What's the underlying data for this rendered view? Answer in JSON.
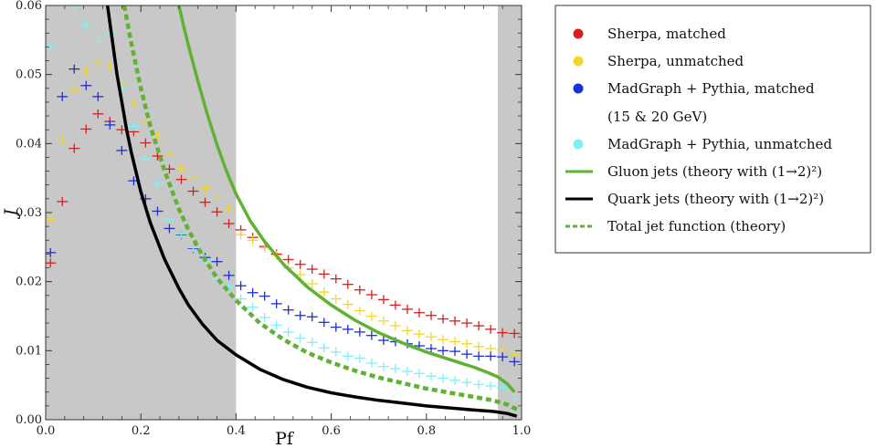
{
  "chart_data": {
    "type": "scatter",
    "title": "",
    "xlabel": "Pf",
    "ylabel": "J",
    "xlim": [
      0.0,
      1.0
    ],
    "ylim": [
      0.0,
      0.06
    ],
    "x_ticks": [
      "0.0",
      "0.2",
      "0.4",
      "0.6",
      "0.8",
      "1.0"
    ],
    "y_ticks": [
      "0.00",
      "0.01",
      "0.02",
      "0.03",
      "0.04",
      "0.05",
      "0.06"
    ],
    "shaded_regions": [
      [
        0.0,
        0.4
      ],
      [
        0.95,
        1.0
      ]
    ],
    "legend_position": "right-outside",
    "legend_extra_line": "(15 & 20 GeV)",
    "series": [
      {
        "name": "Sherpa, matched",
        "kind": "points",
        "color": "#d42020",
        "x": [
          0.01,
          0.035,
          0.06,
          0.085,
          0.11,
          0.135,
          0.16,
          0.185,
          0.21,
          0.235,
          0.26,
          0.285,
          0.31,
          0.335,
          0.36,
          0.385,
          0.41,
          0.435,
          0.46,
          0.485,
          0.51,
          0.535,
          0.56,
          0.585,
          0.61,
          0.635,
          0.66,
          0.685,
          0.71,
          0.735,
          0.76,
          0.785,
          0.81,
          0.835,
          0.86,
          0.885,
          0.91,
          0.935,
          0.96,
          0.985
        ],
        "y": [
          0.0227,
          0.0316,
          0.0393,
          0.0421,
          0.0443,
          0.0432,
          0.042,
          0.0417,
          0.0401,
          0.0382,
          0.0363,
          0.0348,
          0.0331,
          0.0315,
          0.0301,
          0.0284,
          0.0275,
          0.0264,
          0.0251,
          0.024,
          0.0232,
          0.0225,
          0.0218,
          0.0211,
          0.0204,
          0.0196,
          0.0188,
          0.0181,
          0.0174,
          0.0166,
          0.016,
          0.0155,
          0.0151,
          0.0146,
          0.0143,
          0.014,
          0.0136,
          0.0131,
          0.0126,
          0.0125
        ]
      },
      {
        "name": "Sherpa, unmatched",
        "kind": "points",
        "color": "#f2d72a",
        "x": [
          0.01,
          0.035,
          0.06,
          0.085,
          0.11,
          0.135,
          0.16,
          0.185,
          0.21,
          0.235,
          0.26,
          0.285,
          0.31,
          0.335,
          0.36,
          0.385,
          0.41,
          0.435,
          0.46,
          0.485,
          0.51,
          0.535,
          0.56,
          0.585,
          0.61,
          0.635,
          0.66,
          0.685,
          0.71,
          0.735,
          0.76,
          0.785,
          0.81,
          0.835,
          0.86,
          0.885,
          0.91,
          0.935,
          0.96,
          0.985
        ],
        "y": [
          0.029,
          0.0405,
          0.0478,
          0.0505,
          0.0518,
          0.0511,
          0.0485,
          0.0458,
          0.0432,
          0.0411,
          0.0386,
          0.0364,
          0.035,
          0.0335,
          0.0323,
          0.0305,
          0.0268,
          0.026,
          0.0249,
          0.0238,
          0.022,
          0.021,
          0.0197,
          0.0185,
          0.0175,
          0.0167,
          0.0158,
          0.015,
          0.0143,
          0.0136,
          0.0129,
          0.0124,
          0.012,
          0.0116,
          0.0113,
          0.011,
          0.0106,
          0.0103,
          0.0101,
          0.0094
        ]
      },
      {
        "name": "MadGraph + Pythia, matched",
        "kind": "points",
        "color": "#1c2fd6",
        "x": [
          0.01,
          0.035,
          0.06,
          0.085,
          0.11,
          0.135,
          0.16,
          0.185,
          0.21,
          0.235,
          0.26,
          0.285,
          0.31,
          0.335,
          0.36,
          0.385,
          0.41,
          0.435,
          0.46,
          0.485,
          0.51,
          0.535,
          0.56,
          0.585,
          0.61,
          0.635,
          0.66,
          0.685,
          0.71,
          0.735,
          0.76,
          0.785,
          0.81,
          0.835,
          0.86,
          0.885,
          0.91,
          0.935,
          0.96,
          0.985
        ],
        "y": [
          0.0242,
          0.0468,
          0.0508,
          0.0484,
          0.0468,
          0.0427,
          0.039,
          0.0346,
          0.032,
          0.0302,
          0.0277,
          0.0268,
          0.0248,
          0.0235,
          0.0229,
          0.0209,
          0.0194,
          0.0184,
          0.0179,
          0.0168,
          0.0159,
          0.0151,
          0.0149,
          0.0141,
          0.0134,
          0.0131,
          0.0127,
          0.0122,
          0.0115,
          0.0113,
          0.011,
          0.0107,
          0.0103,
          0.01,
          0.0099,
          0.0095,
          0.0092,
          0.0092,
          0.0091,
          0.0084
        ]
      },
      {
        "name": "MadGraph + Pythia, unmatched",
        "kind": "points",
        "color": "#7ff0f5",
        "x": [
          0.01,
          0.035,
          0.06,
          0.085,
          0.11,
          0.135,
          0.16,
          0.185,
          0.21,
          0.235,
          0.26,
          0.285,
          0.31,
          0.335,
          0.36,
          0.385,
          0.41,
          0.435,
          0.46,
          0.485,
          0.51,
          0.535,
          0.56,
          0.585,
          0.61,
          0.635,
          0.66,
          0.685,
          0.71,
          0.735,
          0.76,
          0.785,
          0.81,
          0.835,
          0.86,
          0.885,
          0.91,
          0.935,
          0.96,
          0.985
        ],
        "y": [
          0.0541,
          0.0612,
          0.0598,
          0.057,
          0.0548,
          0.056,
          0.048,
          0.0425,
          0.0377,
          0.0342,
          0.029,
          0.0269,
          0.0249,
          0.0232,
          0.0204,
          0.0192,
          0.0175,
          0.0163,
          0.0148,
          0.0137,
          0.0127,
          0.0118,
          0.0112,
          0.0104,
          0.0098,
          0.0092,
          0.0089,
          0.0082,
          0.0077,
          0.0074,
          0.007,
          0.0067,
          0.0063,
          0.006,
          0.0057,
          0.0054,
          0.0051,
          0.0049,
          0.0047,
          0.003
        ]
      },
      {
        "name": "Gluon jets (theory with (1→2)²)",
        "kind": "line",
        "color": "#5fb233",
        "dash": "solid",
        "x": [
          0.28,
          0.29,
          0.3,
          0.32,
          0.34,
          0.36,
          0.38,
          0.4,
          0.43,
          0.46,
          0.5,
          0.55,
          0.6,
          0.65,
          0.7,
          0.75,
          0.8,
          0.85,
          0.9,
          0.93,
          0.95,
          0.97,
          0.985
        ],
        "y": [
          0.06,
          0.057,
          0.0542,
          0.049,
          0.0442,
          0.0398,
          0.036,
          0.0327,
          0.0288,
          0.0258,
          0.0225,
          0.0192,
          0.0166,
          0.0144,
          0.0126,
          0.0111,
          0.0098,
          0.0087,
          0.0076,
          0.0068,
          0.0062,
          0.0052,
          0.004
        ]
      },
      {
        "name": "Quark jets (theory with (1→2)²)",
        "kind": "line",
        "color": "#000000",
        "dash": "solid",
        "x": [
          0.13,
          0.14,
          0.15,
          0.16,
          0.17,
          0.18,
          0.2,
          0.22,
          0.25,
          0.28,
          0.3,
          0.33,
          0.36,
          0.4,
          0.45,
          0.5,
          0.55,
          0.6,
          0.65,
          0.7,
          0.75,
          0.8,
          0.85,
          0.9,
          0.94,
          0.97,
          0.99
        ],
        "y": [
          0.06,
          0.055,
          0.05,
          0.046,
          0.042,
          0.0387,
          0.033,
          0.0285,
          0.0232,
          0.019,
          0.0166,
          0.0138,
          0.0115,
          0.0094,
          0.0073,
          0.0058,
          0.0047,
          0.0039,
          0.0033,
          0.0028,
          0.0024,
          0.002,
          0.0017,
          0.0014,
          0.0012,
          0.0009,
          0.0005
        ]
      },
      {
        "name": "Total jet function (theory)",
        "kind": "line",
        "color": "#5fb233",
        "dash": "dashed",
        "x": [
          0.165,
          0.18,
          0.2,
          0.22,
          0.25,
          0.28,
          0.3,
          0.33,
          0.36,
          0.4,
          0.45,
          0.5,
          0.55,
          0.6,
          0.65,
          0.7,
          0.75,
          0.8,
          0.85,
          0.9,
          0.94,
          0.97,
          0.99
        ],
        "y": [
          0.06,
          0.0545,
          0.048,
          0.0425,
          0.036,
          0.0305,
          0.0275,
          0.0237,
          0.0205,
          0.0173,
          0.014,
          0.0116,
          0.0097,
          0.0083,
          0.0071,
          0.0061,
          0.0053,
          0.0045,
          0.0039,
          0.0033,
          0.0028,
          0.0022,
          0.0015
        ]
      }
    ]
  }
}
